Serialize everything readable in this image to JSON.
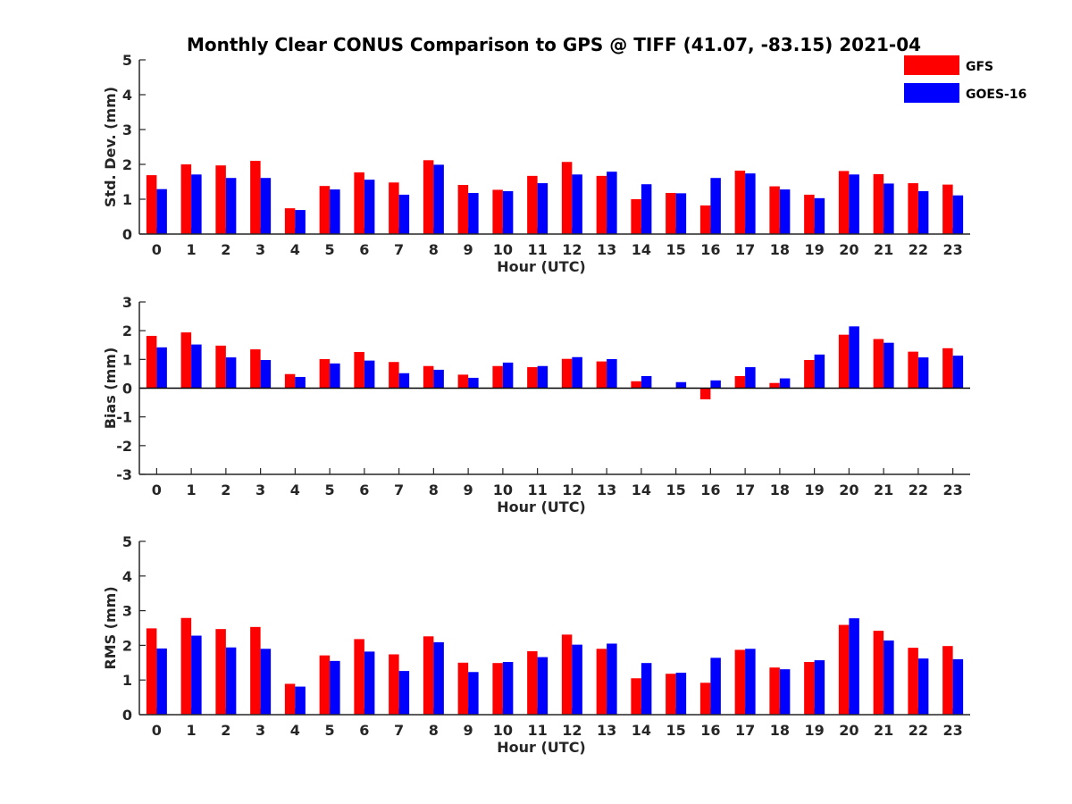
{
  "title": "Monthly Clear CONUS Comparison to GPS @ TIFF (41.07, -83.15) 2021-04",
  "legend": {
    "position": "top-right",
    "items": [
      {
        "label": "GFS",
        "color": "#ff0000"
      },
      {
        "label": "GOES-16",
        "color": "#0000ff"
      }
    ]
  },
  "chart_data": [
    {
      "type": "bar",
      "xlabel": "Hour (UTC)",
      "ylabel": "Std. Dev. (mm)",
      "ylim": [
        0,
        5
      ],
      "yticks": [
        0,
        1,
        2,
        3,
        4,
        5
      ],
      "categories": [
        "0",
        "1",
        "2",
        "3",
        "4",
        "5",
        "6",
        "7",
        "8",
        "9",
        "10",
        "11",
        "12",
        "13",
        "14",
        "15",
        "16",
        "17",
        "18",
        "19",
        "20",
        "21",
        "22",
        "23"
      ],
      "series": [
        {
          "name": "GFS",
          "color": "#ff0000",
          "values": [
            1.69,
            2.0,
            1.97,
            2.1,
            0.74,
            1.38,
            1.77,
            1.48,
            2.12,
            1.41,
            1.27,
            1.67,
            2.07,
            1.67,
            1.0,
            1.18,
            0.82,
            1.82,
            1.37,
            1.13,
            1.81,
            1.72,
            1.46,
            1.42
          ]
        },
        {
          "name": "GOES-16",
          "color": "#0000ff",
          "values": [
            1.29,
            1.71,
            1.61,
            1.61,
            0.69,
            1.28,
            1.56,
            1.13,
            1.99,
            1.18,
            1.23,
            1.46,
            1.71,
            1.79,
            1.43,
            1.17,
            1.61,
            1.74,
            1.28,
            1.03,
            1.71,
            1.45,
            1.23,
            1.11
          ]
        }
      ]
    },
    {
      "type": "bar",
      "xlabel": "Hour (UTC)",
      "ylabel": "Bias (mm)",
      "ylim": [
        -3,
        3
      ],
      "yticks": [
        -3,
        -2,
        -1,
        0,
        1,
        2,
        3
      ],
      "categories": [
        "0",
        "1",
        "2",
        "3",
        "4",
        "5",
        "6",
        "7",
        "8",
        "9",
        "10",
        "11",
        "12",
        "13",
        "14",
        "15",
        "16",
        "17",
        "18",
        "19",
        "20",
        "21",
        "22",
        "23"
      ],
      "series": [
        {
          "name": "GFS",
          "color": "#ff0000",
          "values": [
            1.82,
            1.94,
            1.48,
            1.35,
            0.49,
            1.01,
            1.26,
            0.91,
            0.77,
            0.47,
            0.77,
            0.73,
            1.02,
            0.93,
            0.24,
            0.0,
            -0.39,
            0.42,
            0.18,
            0.98,
            1.86,
            1.71,
            1.27,
            1.39
          ]
        },
        {
          "name": "GOES-16",
          "color": "#0000ff",
          "values": [
            1.42,
            1.52,
            1.07,
            0.98,
            0.39,
            0.86,
            0.96,
            0.52,
            0.64,
            0.36,
            0.89,
            0.77,
            1.08,
            1.01,
            0.42,
            0.21,
            0.27,
            0.73,
            0.34,
            1.17,
            2.15,
            1.58,
            1.07,
            1.13
          ]
        }
      ]
    },
    {
      "type": "bar",
      "xlabel": "Hour (UTC)",
      "ylabel": "RMS (mm)",
      "ylim": [
        0,
        5
      ],
      "yticks": [
        0,
        1,
        2,
        3,
        4,
        5
      ],
      "categories": [
        "0",
        "1",
        "2",
        "3",
        "4",
        "5",
        "6",
        "7",
        "8",
        "9",
        "10",
        "11",
        "12",
        "13",
        "14",
        "15",
        "16",
        "17",
        "18",
        "19",
        "20",
        "21",
        "22",
        "23"
      ],
      "series": [
        {
          "name": "GFS",
          "color": "#ff0000",
          "values": [
            2.49,
            2.79,
            2.47,
            2.53,
            0.89,
            1.71,
            2.18,
            1.74,
            2.26,
            1.5,
            1.49,
            1.83,
            2.31,
            1.9,
            1.05,
            1.18,
            0.92,
            1.87,
            1.36,
            1.52,
            2.59,
            2.42,
            1.93,
            1.98
          ]
        },
        {
          "name": "GOES-16",
          "color": "#0000ff",
          "values": [
            1.91,
            2.28,
            1.94,
            1.9,
            0.81,
            1.55,
            1.82,
            1.26,
            2.09,
            1.23,
            1.52,
            1.66,
            2.02,
            2.05,
            1.49,
            1.21,
            1.64,
            1.9,
            1.31,
            1.57,
            2.78,
            2.14,
            1.62,
            1.6
          ]
        }
      ]
    }
  ]
}
